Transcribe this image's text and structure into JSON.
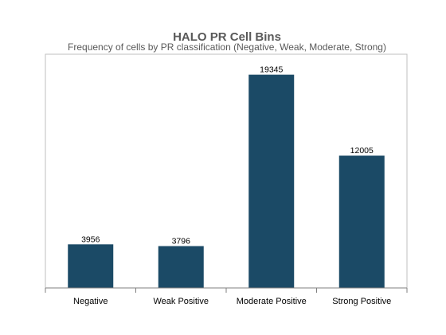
{
  "chart_data": {
    "type": "bar",
    "title": "HALO PR Cell Bins",
    "subtitle": "Frequency of cells by PR classification (Negative, Weak, Moderate, Strong)",
    "categories": [
      "Negative",
      "Weak Positive",
      "Moderate Positive",
      "Strong Positive"
    ],
    "values": [
      3956,
      3796,
      19345,
      12005
    ],
    "data_labels": [
      "3956",
      "3796",
      "19345",
      "12005"
    ],
    "xlabel": "",
    "ylabel": "",
    "ylim": [
      0,
      21200
    ],
    "grid": false,
    "legend": "none",
    "bar_color": "#1b4a66",
    "axis_color": "#bfbfbf"
  }
}
